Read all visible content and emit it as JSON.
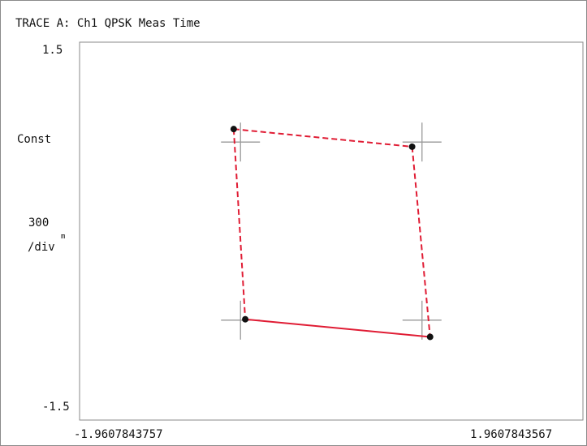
{
  "trace_title": "TRACE A: Ch1 QPSK Meas Time",
  "y_axis": {
    "max_label": "1.5",
    "min_label": "-1.5",
    "name": "Const",
    "scale_value": "300",
    "scale_unit": "m",
    "scale_per": "/div"
  },
  "x_axis": {
    "min_label": "-1.9607843757",
    "max_label": "1.9607843567"
  },
  "colors": {
    "trajectory": "#e01c34",
    "marker": "#111111",
    "crosshair": "#9a9a9a",
    "frame": "#8a8a8a"
  },
  "chart_data": {
    "type": "scatter",
    "title": "TRACE A: Ch1 QPSK Meas Time",
    "ylabel": "Const",
    "xlim": [
      -1.9607843757,
      1.9607843567
    ],
    "ylim": [
      -1.5,
      1.5
    ],
    "grid": false,
    "reference_points": [
      {
        "x": -0.707,
        "y": 0.707
      },
      {
        "x": 0.707,
        "y": 0.707
      },
      {
        "x": -0.707,
        "y": -0.707
      },
      {
        "x": 0.707,
        "y": -0.707
      }
    ],
    "measured_points": [
      {
        "x": -0.76,
        "y": 0.81
      },
      {
        "x": 0.63,
        "y": 0.67
      },
      {
        "x": -0.67,
        "y": -0.7
      },
      {
        "x": 0.77,
        "y": -0.84
      }
    ],
    "trajectory_segments": [
      {
        "from": 0,
        "to": 1,
        "style": "dashed"
      },
      {
        "from": 1,
        "to": 3,
        "style": "dashed"
      },
      {
        "from": 0,
        "to": 2,
        "style": "dashed"
      },
      {
        "from": 2,
        "to": 3,
        "style": "solid"
      }
    ]
  }
}
